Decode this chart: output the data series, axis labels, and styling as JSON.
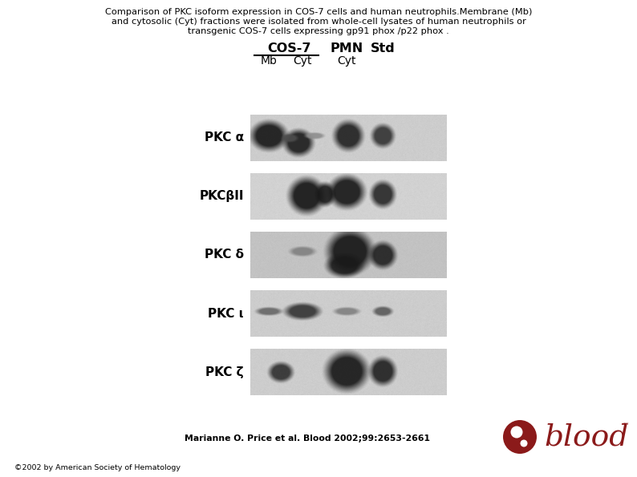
{
  "title_line1": "Comparison of PKC isoform expression in COS-7 cells and human neutrophils.Membrane (Mb)",
  "title_line2": "and cytosolic (Cyt) fractions were isolated from whole-cell lysates of human neutrophils or",
  "title_line3": "transgenic COS-7 cells expressing gp91 phox /p22 phox .",
  "cos7_label": "COS-7",
  "pmn_label": "PMN",
  "std_label": "Std",
  "mb_label": "Mb",
  "cyt_label1": "Cyt",
  "cyt_label2": "Cyt",
  "panel_labels": [
    "PKC α",
    "PKCβII",
    "PKC δ",
    "PKC ι",
    "PKC ζ"
  ],
  "citation": "Marianne O. Price et al. Blood 2002;99:2653-2661",
  "copyright": "©2002 by American Society of Hematology",
  "blood_text": "blood",
  "background_color": "#ffffff",
  "text_color": "#000000",
  "blood_color": "#8b1a1a",
  "panel_bg_light": "#d0d0d0",
  "panel_bg_dark": "#b8b8b8"
}
